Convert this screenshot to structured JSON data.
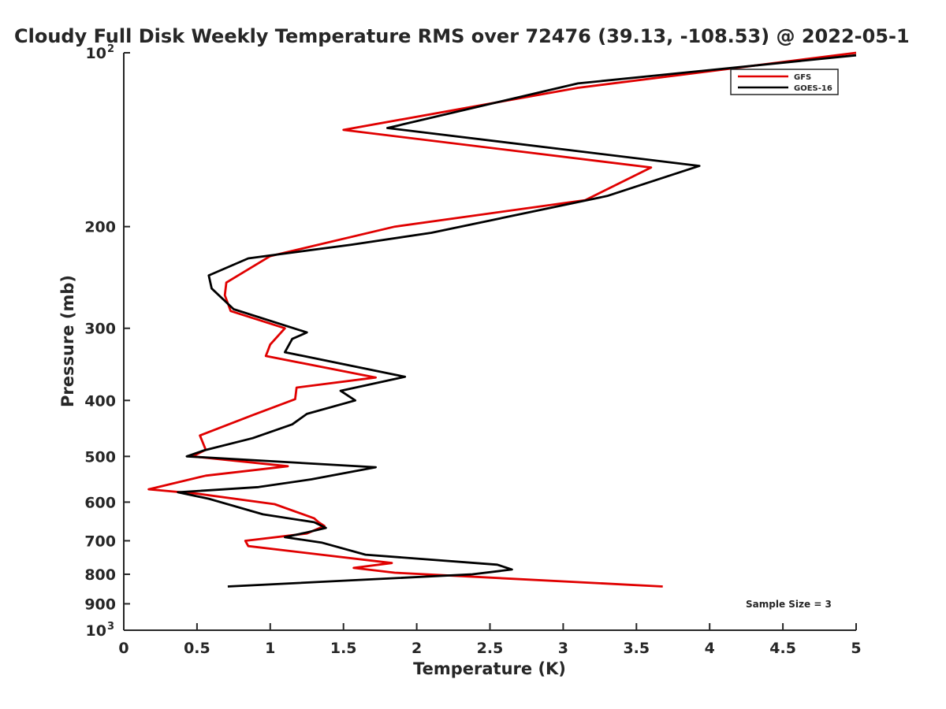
{
  "chart_data": {
    "type": "line",
    "title": "Cloudy Full Disk Weekly Temperature RMS over 72476 (39.13, -108.53) @ 2022-05-1",
    "xlabel": "Temperature (K)",
    "ylabel": "Pressure (mb)",
    "xlim": [
      0,
      5
    ],
    "ylim": [
      100,
      1000
    ],
    "y_scale": "log",
    "y_reversed": true,
    "x_ticks": [
      0,
      0.5,
      1,
      1.5,
      2,
      2.5,
      3,
      3.5,
      4,
      4.5,
      5
    ],
    "x_tick_labels": [
      "0",
      "0.5",
      "1",
      "1.5",
      "2",
      "2.5",
      "3",
      "3.5",
      "4",
      "4.5",
      "5"
    ],
    "y_ticks": [
      100,
      200,
      300,
      400,
      500,
      600,
      700,
      800,
      900,
      1000
    ],
    "y_tick_labels": [
      {
        "base": "10",
        "exp": "2"
      },
      {
        "base": "200",
        "exp": ""
      },
      {
        "base": "300",
        "exp": ""
      },
      {
        "base": "400",
        "exp": ""
      },
      {
        "base": "500",
        "exp": ""
      },
      {
        "base": "600",
        "exp": ""
      },
      {
        "base": "700",
        "exp": ""
      },
      {
        "base": "800",
        "exp": ""
      },
      {
        "base": "900",
        "exp": ""
      },
      {
        "base": "10",
        "exp": "3"
      }
    ],
    "legend_position": "top-right",
    "annotation": "Sample Size = 3",
    "series": [
      {
        "name": "GFS",
        "color": "#e00000",
        "points": [
          [
            5.0,
            100
          ],
          [
            3.1,
            115
          ],
          [
            1.5,
            136
          ],
          [
            3.6,
            158
          ],
          [
            3.15,
            180
          ],
          [
            1.85,
            200
          ],
          [
            1.0,
            225
          ],
          [
            0.7,
            250
          ],
          [
            0.69,
            263
          ],
          [
            0.73,
            280
          ],
          [
            1.1,
            300
          ],
          [
            1.0,
            320
          ],
          [
            0.97,
            335
          ],
          [
            1.72,
            365
          ],
          [
            1.18,
            380
          ],
          [
            1.17,
            398
          ],
          [
            0.88,
            424
          ],
          [
            0.52,
            460
          ],
          [
            0.56,
            487
          ],
          [
            0.47,
            500
          ],
          [
            1.12,
            520
          ],
          [
            0.56,
            540
          ],
          [
            0.17,
            570
          ],
          [
            0.5,
            580
          ],
          [
            1.03,
            605
          ],
          [
            1.3,
            640
          ],
          [
            1.33,
            650
          ],
          [
            1.37,
            660
          ],
          [
            1.25,
            680
          ],
          [
            0.83,
            700
          ],
          [
            0.85,
            715
          ],
          [
            1.83,
            765
          ],
          [
            1.57,
            780
          ],
          [
            1.85,
            795
          ],
          [
            3.68,
            840
          ]
        ]
      },
      {
        "name": "GOES-16",
        "color": "#000000",
        "points": [
          [
            5.0,
            101
          ],
          [
            3.1,
            113
          ],
          [
            1.8,
            135
          ],
          [
            3.93,
            157
          ],
          [
            3.3,
            177
          ],
          [
            2.1,
            205
          ],
          [
            1.55,
            215
          ],
          [
            0.85,
            227
          ],
          [
            0.58,
            243
          ],
          [
            0.6,
            256
          ],
          [
            0.75,
            278
          ],
          [
            1.25,
            305
          ],
          [
            1.15,
            313
          ],
          [
            1.1,
            330
          ],
          [
            1.92,
            364
          ],
          [
            1.48,
            385
          ],
          [
            1.58,
            400
          ],
          [
            1.25,
            422
          ],
          [
            1.15,
            440
          ],
          [
            0.88,
            465
          ],
          [
            0.55,
            488
          ],
          [
            0.43,
            500
          ],
          [
            1.72,
            522
          ],
          [
            1.28,
            548
          ],
          [
            0.92,
            565
          ],
          [
            0.37,
            577
          ],
          [
            0.58,
            592
          ],
          [
            0.95,
            630
          ],
          [
            1.3,
            650
          ],
          [
            1.38,
            665
          ],
          [
            1.25,
            677
          ],
          [
            1.1,
            690
          ],
          [
            1.35,
            705
          ],
          [
            1.65,
            740
          ],
          [
            2.55,
            770
          ],
          [
            2.65,
            785
          ],
          [
            2.38,
            800
          ],
          [
            0.71,
            840
          ]
        ]
      }
    ]
  }
}
